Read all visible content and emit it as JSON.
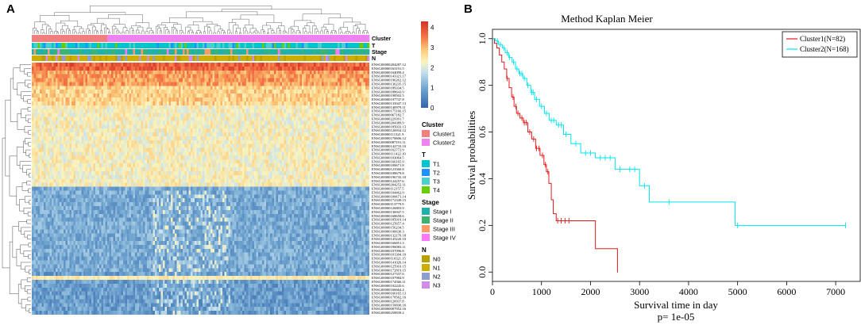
{
  "panels": {
    "a": {
      "label": "A",
      "annotation_rows": [
        "Cluster",
        "T",
        "Stage",
        "N"
      ],
      "color_scale": {
        "ticks": [
          "4",
          "3",
          "2",
          "1",
          "0"
        ],
        "min": 0,
        "max": 4.3
      },
      "genes": [
        "ENSG00000204287.12",
        "ENSG00000163191.5",
        "ENSG00000164099.4",
        "ENSG00000143321.17",
        "ENSG00000196262.12",
        "ENSG00000136235.15",
        "ENSG00000189334.5",
        "ENSG00000188643.9",
        "ENSG00000198502.5",
        "ENSG00000197747.8",
        "ENSG00000135047.13",
        "ENSG00000140979.11",
        "ENSG00000175166.15",
        "ENSG00000067182.7",
        "ENSG00000229391.7",
        "ENSG00000204389.9",
        "ENSG00000185033.13",
        "ENSG00000126934.12",
        "ENSG00000111321.9",
        "ENSG00000170606.12",
        "ENSG00000087191.11",
        "ENSG00000142733.10",
        "ENSG00000162772.9",
        "ENSG00000111422.10",
        "ENSG00000103064.5",
        "ENSG00000166165.9",
        "ENSG00000100671.8",
        "ENSG00000123560.8",
        "ENSG00000108679.8",
        "ENSG00000196735.10",
        "ENSG00000124257.6",
        "ENSG00000204252.11",
        "ENSG00000112157.5",
        "ENSG00000104462.9",
        "ENSG00000100671.14",
        "ENSG00000172349.15",
        "ENSG00000113779.9",
        "ENSG00000126803.9",
        "ENSG00000136947.5",
        "ENSG00000168658.6",
        "ENSG00000185019.14",
        "ENSG00000125657.4",
        "ENSG00000156234.5",
        "ENSG00000106630.3",
        "ENSG00000132170.18",
        "ENSG00000145220.10",
        "ENSG00000166851.3",
        "ENSG00000196083.11",
        "ENSG00000107096.8",
        "ENSG00000101304.10",
        "ENSG00000110321.15",
        "ENSG00000141026.14",
        "ENSG00000125910.15",
        "ENSG00000172819.15",
        "ENSG00000127337.6",
        "ENSG00000107984.9",
        "ENSG00000174566.11",
        "ENSG00000102245.6",
        "ENSG00000166664.4",
        "ENSG00000166165.13",
        "ENSG00000178562.16",
        "ENSG00000120937.8",
        "ENSG00000150690.16",
        "ENSG00000007952.16",
        "ENSG00000258839.2"
      ],
      "legends": [
        {
          "title": "Cluster",
          "items": [
            {
              "label": "Cluster1",
              "color": "#f08080"
            },
            {
              "label": "Cluster2",
              "color": "#ee82ee"
            }
          ]
        },
        {
          "title": "T",
          "items": [
            {
              "label": "T1",
              "color": "#00c5cd"
            },
            {
              "label": "T2",
              "color": "#1e90ff"
            },
            {
              "label": "T3",
              "color": "#48d1cc"
            },
            {
              "label": "T4",
              "color": "#66cd00"
            }
          ]
        },
        {
          "title": "Stage",
          "items": [
            {
              "label": "Stage I",
              "color": "#20b2aa"
            },
            {
              "label": "Stage II",
              "color": "#3cb371"
            },
            {
              "label": "Stage III",
              "color": "#ff9966"
            },
            {
              "label": "Stage IV",
              "color": "#ff77ff"
            }
          ]
        },
        {
          "title": "N",
          "items": [
            {
              "label": "N0",
              "color": "#b8a000"
            },
            {
              "label": "N1",
              "color": "#cdad00"
            },
            {
              "label": "N2",
              "color": "#8da0cb"
            },
            {
              "label": "N3",
              "color": "#d08ce6"
            }
          ]
        }
      ]
    },
    "b": {
      "label": "B"
    }
  },
  "chart_data": {
    "type": "line",
    "title": "Method Kaplan Meier",
    "xlabel": "Survival time in day",
    "ylabel": "Survival probabilities",
    "pvalue_text": "p= 1e-05",
    "xlim": [
      0,
      7500
    ],
    "ylim": [
      -0.04,
      1.04
    ],
    "x_ticks": [
      0,
      1000,
      2000,
      3000,
      4000,
      5000,
      6000,
      7000
    ],
    "y_ticks": [
      0.0,
      0.2,
      0.4,
      0.6,
      0.8,
      1.0
    ],
    "series": [
      {
        "name": "Cluster1(N=82)",
        "color": "#e41a1c",
        "steps": [
          [
            0,
            1.0
          ],
          [
            40,
            0.98
          ],
          [
            90,
            0.96
          ],
          [
            140,
            0.93
          ],
          [
            190,
            0.9
          ],
          [
            240,
            0.87
          ],
          [
            290,
            0.83
          ],
          [
            340,
            0.79
          ],
          [
            390,
            0.75
          ],
          [
            440,
            0.71
          ],
          [
            490,
            0.68
          ],
          [
            560,
            0.66
          ],
          [
            630,
            0.64
          ],
          [
            720,
            0.6
          ],
          [
            800,
            0.57
          ],
          [
            880,
            0.53
          ],
          [
            970,
            0.5
          ],
          [
            1050,
            0.46
          ],
          [
            1100,
            0.43
          ],
          [
            1150,
            0.38
          ],
          [
            1200,
            0.31
          ],
          [
            1240,
            0.25
          ],
          [
            1300,
            0.22
          ],
          [
            2100,
            0.1
          ],
          [
            2550,
            0.0
          ]
        ],
        "x_end": 2560,
        "censor_x": [
          300,
          420,
          480,
          520,
          600,
          650,
          690,
          760,
          840,
          900,
          950,
          1020,
          1080,
          1130,
          1330,
          1400,
          1480,
          1560
        ]
      },
      {
        "name": "Cluster2(N=168)",
        "color": "#00e5ee",
        "steps": [
          [
            0,
            1.0
          ],
          [
            60,
            0.99
          ],
          [
            120,
            0.975
          ],
          [
            200,
            0.96
          ],
          [
            260,
            0.94
          ],
          [
            330,
            0.92
          ],
          [
            400,
            0.9
          ],
          [
            470,
            0.87
          ],
          [
            540,
            0.85
          ],
          [
            620,
            0.83
          ],
          [
            700,
            0.8
          ],
          [
            780,
            0.77
          ],
          [
            860,
            0.74
          ],
          [
            960,
            0.71
          ],
          [
            1060,
            0.68
          ],
          [
            1160,
            0.65
          ],
          [
            1300,
            0.63
          ],
          [
            1450,
            0.59
          ],
          [
            1600,
            0.55
          ],
          [
            1800,
            0.51
          ],
          [
            2100,
            0.49
          ],
          [
            2500,
            0.44
          ],
          [
            3000,
            0.37
          ],
          [
            3200,
            0.3
          ],
          [
            4950,
            0.2
          ]
        ],
        "x_end": 7200,
        "censor_x": [
          100,
          160,
          230,
          300,
          350,
          430,
          500,
          560,
          600,
          650,
          720,
          800,
          830,
          900,
          1000,
          1100,
          1200,
          1250,
          1350,
          1400,
          1500,
          1700,
          1900,
          2000,
          2200,
          2300,
          2400,
          2600,
          2800,
          2900,
          3100,
          3600,
          5000,
          7200
        ]
      }
    ]
  }
}
